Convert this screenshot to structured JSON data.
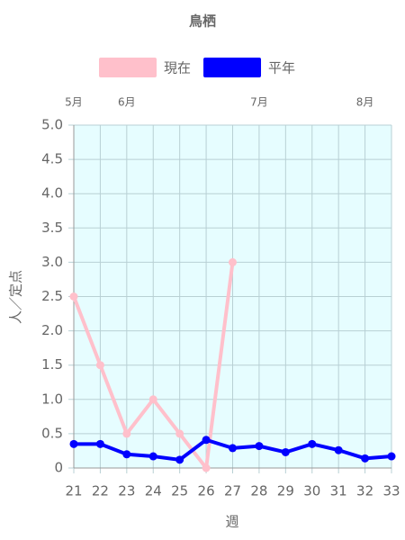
{
  "chart_data": {
    "type": "line",
    "title": "鳥栖",
    "x_label": "週",
    "y_label": "人／定点",
    "x": [
      21,
      22,
      23,
      24,
      25,
      26,
      27,
      28,
      29,
      30,
      31,
      32,
      33
    ],
    "series": [
      {
        "name": "現在",
        "color": "#ffc0cb",
        "values": [
          2.5,
          1.5,
          0.5,
          1.0,
          0.5,
          0,
          3.0,
          null,
          null,
          null,
          null,
          null,
          null
        ]
      },
      {
        "name": "平年",
        "color": "#0000ff",
        "values": [
          0.35,
          0.35,
          0.2,
          0.17,
          0.12,
          0.41,
          0.29,
          0.32,
          0.23,
          0.35,
          0.26,
          0.14,
          0.17
        ]
      }
    ],
    "xlim": [
      21,
      33
    ],
    "xticks": [
      21,
      22,
      23,
      24,
      25,
      26,
      27,
      28,
      29,
      30,
      31,
      32,
      33
    ],
    "ylim": [
      0,
      5
    ],
    "yticks": [
      0,
      0.5,
      {
        "value": 1,
        "label": "1.0"
      },
      1.5,
      {
        "value": 2,
        "label": "2.0"
      },
      2.5,
      {
        "value": 3,
        "label": "3.0"
      },
      3.5,
      {
        "value": 4,
        "label": "4.0"
      },
      4.5,
      {
        "value": 5,
        "label": "5.0"
      }
    ],
    "month_labels": [
      {
        "value": 21,
        "label": "5月"
      },
      {
        "value": 23,
        "label": "6月"
      },
      {
        "value": 28,
        "label": "7月"
      },
      {
        "value": 32,
        "label": "8月"
      }
    ],
    "grid": true,
    "plot_background": "#e6fdff",
    "legend_position": "top"
  }
}
